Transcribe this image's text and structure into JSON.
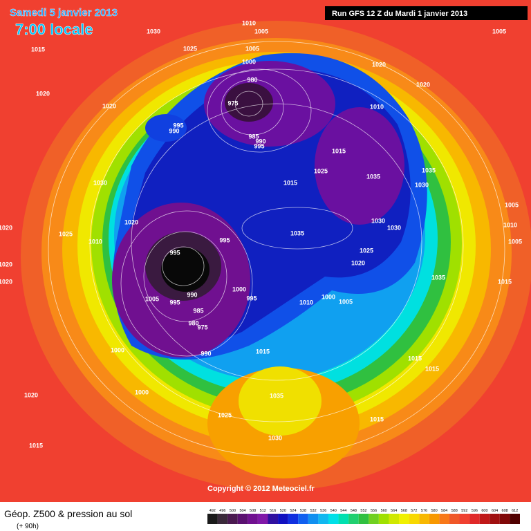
{
  "header": {
    "date": "Samedi 5 janvier 2013",
    "time": "7:00 locale",
    "run": "Run GFS 12 Z du Mardi 1 janvier 2013"
  },
  "map": {
    "isobar_labels": [
      "1010",
      "1005",
      "1030",
      "1005",
      "1015",
      "1025",
      "1005",
      "1000",
      "1020",
      "1020",
      "980",
      "1020",
      "1020",
      "975",
      "1010",
      "995",
      "990",
      "985",
      "990",
      "995",
      "1015",
      "1025",
      "1035",
      "1035",
      "1015",
      "1030",
      "1030",
      "1005",
      "1020",
      "1030",
      "1030",
      "1010",
      "1025",
      "1010",
      "995",
      "1035",
      "1005",
      "995",
      "1025",
      "1020",
      "1020",
      "1020",
      "1035",
      "1015",
      "1000",
      "990",
      "995",
      "1000",
      "1005",
      "1010",
      "1005",
      "995",
      "985",
      "980",
      "975",
      "1000",
      "990",
      "1015",
      "1015",
      "1015",
      "1000",
      "1035",
      "1020",
      "1025",
      "1015",
      "1030",
      "1015",
      "1020"
    ]
  },
  "footer": {
    "title": "Géop. Z500 & pression au sol",
    "lead": "(+ 90h)",
    "copyright": "Copyright © 2012 Meteociel.fr"
  },
  "legend": {
    "values": [
      492,
      496,
      500,
      504,
      508,
      512,
      516,
      520,
      524,
      528,
      532,
      536,
      540,
      544,
      548,
      552,
      556,
      560,
      564,
      568,
      572,
      576,
      580,
      584,
      588,
      592,
      596,
      600,
      604,
      608,
      612
    ],
    "colors": [
      "#1a1a1a",
      "#3a2a3a",
      "#4a1a50",
      "#5a1070",
      "#701090",
      "#8018a8",
      "#3010a0",
      "#1010c0",
      "#1030e0",
      "#1060f0",
      "#1090f0",
      "#10b8f0",
      "#00e0e8",
      "#00e0b0",
      "#20d070",
      "#30c040",
      "#70d020",
      "#a0e000",
      "#d0e800",
      "#f0f000",
      "#f8d800",
      "#f8b800",
      "#f89800",
      "#f87818",
      "#f05828",
      "#f04030",
      "#e02828",
      "#c01818",
      "#a01010",
      "#800808",
      "#500000"
    ]
  }
}
